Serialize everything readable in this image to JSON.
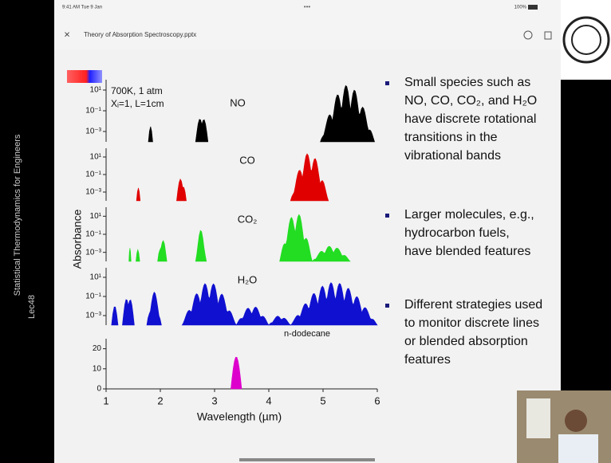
{
  "status_bar": {
    "time": "9:41 AM  Tue 9 Jan",
    "dots": "•••",
    "battery": "100%"
  },
  "title_bar": {
    "close": "×",
    "file": "Theory of Absorption Spectroscopy.pptx"
  },
  "side_caption": {
    "course": "Statistical Thermodynamics for Engineers",
    "lecture": "Lec48"
  },
  "slide": {
    "bullets": [
      [
        "Small species such as",
        "NO, CO, CO₂, and H₂O",
        "have discrete rotational",
        "transitions in the",
        "vibrational bands"
      ],
      [
        "Larger molecules, e.g.,",
        "hydrocarbon fuels,",
        "have blended features"
      ],
      [
        "Different strategies used",
        "to monitor discrete lines",
        "or blended absorption",
        "features"
      ]
    ],
    "chart_data": {
      "type": "area",
      "annotations": [
        "700K, 1 atm",
        "Xᵢ=1, L=1cm"
      ],
      "xlabel": "Wavelength (µm)",
      "ylabel": "Absorbance",
      "xlim": [
        1,
        6
      ],
      "xticks": [
        1,
        2,
        3,
        4,
        5,
        6
      ],
      "panels": [
        {
          "label": "NO",
          "color": "#000000",
          "log": true,
          "ylim": [
            0.0001,
            100
          ],
          "yticks": [
            {
              "value": 10,
              "label": "10¹"
            },
            {
              "value": 0.1,
              "label": "10⁻¹"
            },
            {
              "value": 0.001,
              "label": "10⁻³"
            }
          ],
          "bands": [
            {
              "from": 1.78,
              "to": 1.86,
              "peak": 0.003
            },
            {
              "from": 2.65,
              "to": 2.88,
              "peak": 0.1
            },
            {
              "from": 4.95,
              "to": 5.95,
              "peak": 30
            }
          ]
        },
        {
          "label": "CO",
          "color": "#e00000",
          "log": true,
          "ylim": [
            0.0001,
            100
          ],
          "yticks": [
            {
              "value": 10,
              "label": "10¹"
            },
            {
              "value": 0.1,
              "label": "10⁻¹"
            },
            {
              "value": 0.001,
              "label": "10⁻³"
            }
          ],
          "bands": [
            {
              "from": 1.56,
              "to": 1.63,
              "peak": 0.003
            },
            {
              "from": 2.3,
              "to": 2.48,
              "peak": 0.1
            },
            {
              "from": 4.4,
              "to": 5.1,
              "peak": 30
            }
          ]
        },
        {
          "label": "CO₂",
          "color": "#22dd22",
          "log": true,
          "ylim": [
            0.0001,
            100
          ],
          "yticks": [
            {
              "value": 10,
              "label": "10¹"
            },
            {
              "value": 0.1,
              "label": "10⁻¹"
            },
            {
              "value": 0.001,
              "label": "10⁻³"
            }
          ],
          "bands": [
            {
              "from": 1.42,
              "to": 1.46,
              "peak": 0.003
            },
            {
              "from": 1.55,
              "to": 1.62,
              "peak": 0.002
            },
            {
              "from": 1.95,
              "to": 2.12,
              "peak": 0.05
            },
            {
              "from": 2.65,
              "to": 2.85,
              "peak": 0.3
            },
            {
              "from": 4.2,
              "to": 4.8,
              "peak": 30
            },
            {
              "from": 4.8,
              "to": 5.5,
              "peak": 0.005
            }
          ]
        },
        {
          "label": "H₂O",
          "color": "#1010d0",
          "log": true,
          "ylim": [
            0.0001,
            100
          ],
          "yticks": [
            {
              "value": 10,
              "label": "10¹"
            },
            {
              "value": 0.1,
              "label": "10⁻¹"
            },
            {
              "value": 0.001,
              "label": "10⁻³"
            }
          ],
          "bands": [
            {
              "from": 1.1,
              "to": 1.22,
              "peak": 0.01
            },
            {
              "from": 1.3,
              "to": 1.52,
              "peak": 0.5
            },
            {
              "from": 1.75,
              "to": 2.02,
              "peak": 0.3
            },
            {
              "from": 2.4,
              "to": 3.4,
              "peak": 3
            },
            {
              "from": 3.4,
              "to": 4.0,
              "peak": 0.01
            },
            {
              "from": 4.0,
              "to": 4.4,
              "peak": 0.001
            },
            {
              "from": 4.4,
              "to": 6,
              "peak": 3
            }
          ]
        },
        {
          "label": "n-dodecane",
          "color": "#dd00cc",
          "log": false,
          "ylim": [
            0,
            25
          ],
          "yticks": [
            0,
            10,
            20
          ],
          "bands": [
            {
              "from": 3.3,
              "to": 3.5,
              "peak": 16
            }
          ]
        }
      ]
    }
  }
}
